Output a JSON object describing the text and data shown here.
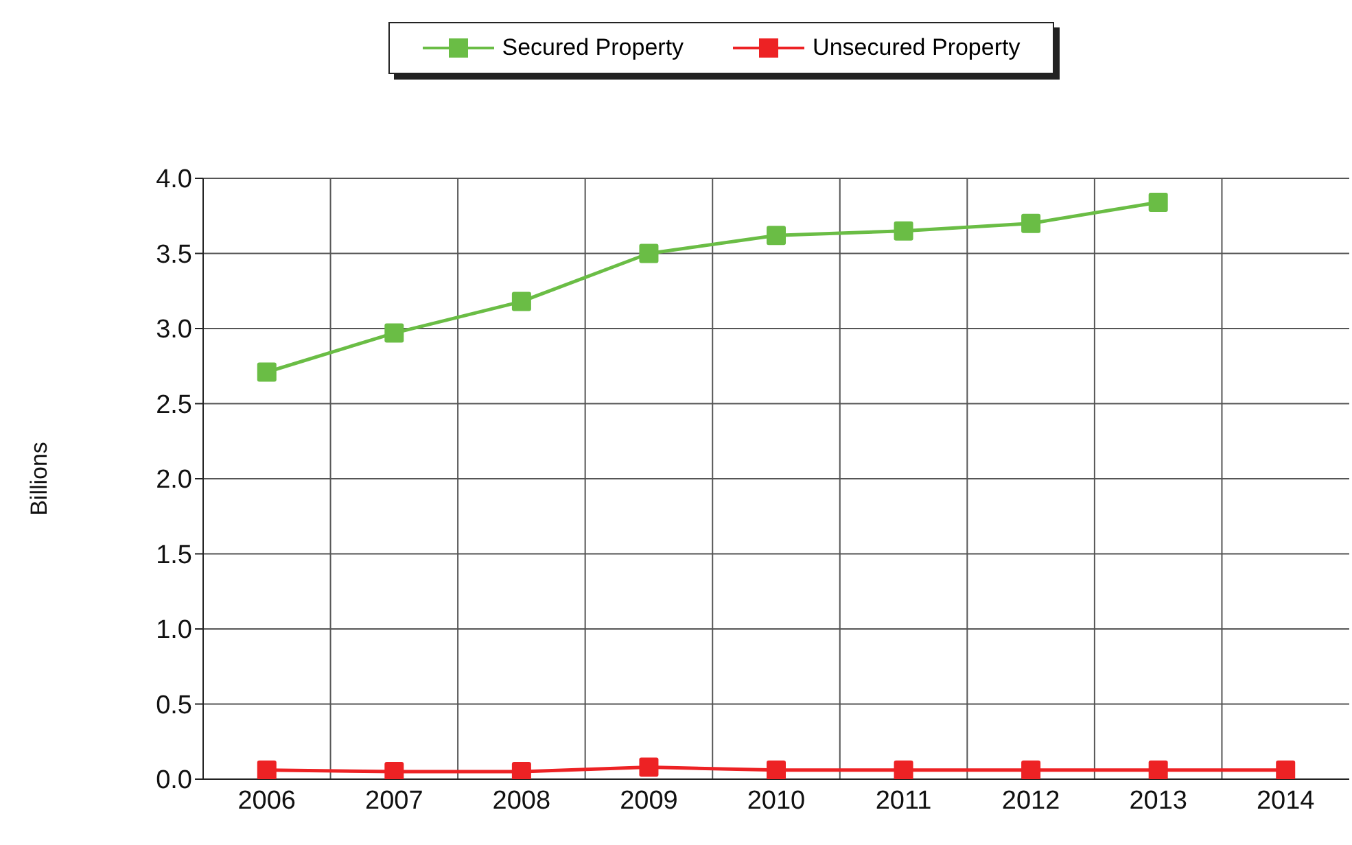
{
  "chart_data": {
    "type": "line",
    "ylabel": "Billions",
    "categories": [
      "2006",
      "2007",
      "2008",
      "2009",
      "2010",
      "2011",
      "2012",
      "2013",
      "2014"
    ],
    "series": [
      {
        "name": "Secured Property",
        "color": "#6abd45",
        "values": [
          2.71,
          2.97,
          3.18,
          3.5,
          3.62,
          3.65,
          3.7,
          3.84,
          null
        ]
      },
      {
        "name": "Unsecured Property",
        "color": "#ed2224",
        "values": [
          0.06,
          0.05,
          0.05,
          0.08,
          0.06,
          0.06,
          0.06,
          0.06,
          0.06
        ]
      }
    ],
    "ylim": [
      0,
      4
    ],
    "yticks": [
      {
        "value": 0,
        "label": "0.0"
      },
      0.5,
      {
        "value": 1,
        "label": "1.0"
      },
      1.5,
      {
        "value": 2,
        "label": "2.0"
      },
      2.5,
      {
        "value": 3,
        "label": "3.0"
      },
      3.5,
      {
        "value": 4,
        "label": "4.0"
      }
    ],
    "grid": true,
    "legend": "top",
    "marker": "square",
    "line_style": "solid"
  }
}
